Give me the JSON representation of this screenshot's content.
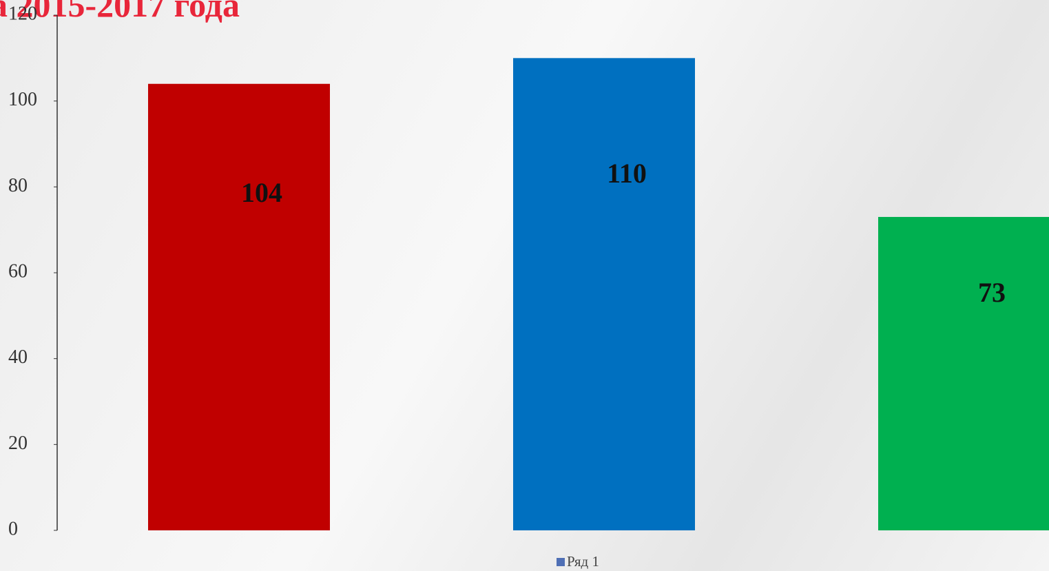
{
  "chart_data": {
    "type": "bar",
    "title": "а 2015-2017 года",
    "categories": [
      null,
      null,
      null
    ],
    "series": [
      {
        "name": "Ряд 1",
        "color": "#4f6fb5",
        "values": [
          104,
          110,
          73
        ]
      }
    ],
    "colors": [
      "#c00000",
      "#0070c0",
      "#00b050"
    ],
    "ylim": [
      0,
      120
    ],
    "yticks": [
      0,
      20,
      40,
      60,
      80,
      100,
      120
    ],
    "grid": false,
    "legend": "bottom"
  }
}
